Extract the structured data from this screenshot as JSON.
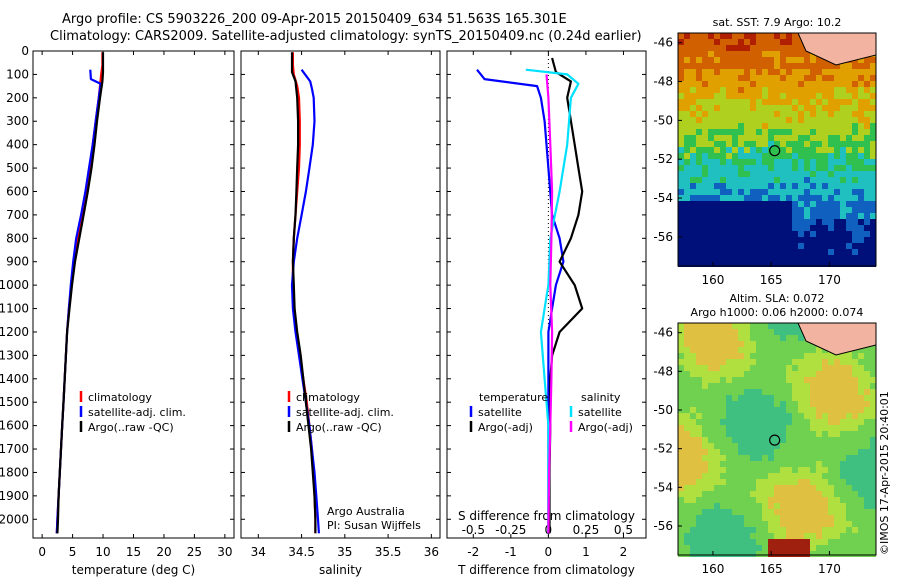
{
  "header": {
    "line1": "Argo profile: CS 5903226_200 09-Apr-2015 20150409_634 51.563S 165.301E",
    "line2": "Climatology: CARS2009. Satellite-adjusted climatology: synTS_20150409.nc (0.24d earlier)"
  },
  "credit": "©IMOS 17-Apr-2015 20:40:01",
  "colors": {
    "red": "#ff0000",
    "blue": "#0000ff",
    "black": "#000000",
    "cyan": "#00e0ff",
    "magenta": "#ff00ff"
  },
  "chart_data": [
    {
      "type": "line",
      "panel": "temperature",
      "xlabel": "temperature (deg C)",
      "ylabel": "",
      "xlim": [
        -1.5,
        31.5
      ],
      "ylim": [
        2080,
        0
      ],
      "xticks": [
        0,
        5,
        10,
        15,
        20,
        25,
        30
      ],
      "yticks": [
        0,
        100,
        200,
        300,
        400,
        500,
        600,
        700,
        800,
        900,
        1000,
        1100,
        1200,
        1300,
        1400,
        1500,
        1600,
        1700,
        1800,
        1900,
        2000
      ],
      "legend": "center-bottom",
      "series": [
        {
          "name": "climatology",
          "color": "red",
          "points": [
            [
              9.9,
              5
            ],
            [
              9.9,
              60
            ],
            [
              9.7,
              100
            ],
            [
              9.3,
              200
            ],
            [
              8.8,
              300
            ],
            [
              8.3,
              400
            ],
            [
              7.8,
              500
            ],
            [
              7.2,
              600
            ],
            [
              6.6,
              700
            ],
            [
              5.9,
              800
            ],
            [
              5.3,
              900
            ],
            [
              4.8,
              1000
            ],
            [
              4.4,
              1100
            ],
            [
              4.1,
              1200
            ],
            [
              3.9,
              1300
            ],
            [
              3.7,
              1400
            ],
            [
              3.5,
              1500
            ],
            [
              3.3,
              1600
            ],
            [
              3.1,
              1700
            ],
            [
              2.9,
              1800
            ],
            [
              2.7,
              1900
            ],
            [
              2.5,
              2000
            ],
            [
              2.4,
              2060
            ]
          ]
        },
        {
          "name": "satellite-adj. clim.",
          "color": "blue",
          "points": [
            [
              7.9,
              80
            ],
            [
              8.0,
              120
            ],
            [
              9.6,
              140
            ],
            [
              9.3,
              200
            ],
            [
              8.8,
              300
            ],
            [
              8.3,
              400
            ],
            [
              7.7,
              500
            ],
            [
              7.1,
              600
            ],
            [
              6.4,
              700
            ],
            [
              5.6,
              800
            ],
            [
              5.1,
              900
            ],
            [
              4.7,
              1000
            ],
            [
              4.4,
              1100
            ],
            [
              4.1,
              1200
            ],
            [
              3.9,
              1300
            ],
            [
              3.7,
              1400
            ],
            [
              3.5,
              1500
            ],
            [
              3.3,
              1600
            ],
            [
              3.1,
              1700
            ],
            [
              2.9,
              1800
            ],
            [
              2.7,
              1900
            ],
            [
              2.5,
              2000
            ],
            [
              2.4,
              2060
            ]
          ]
        },
        {
          "name": "Argo(..raw -QC)",
          "color": "black",
          "points": [
            [
              10.0,
              5
            ],
            [
              10.0,
              90
            ],
            [
              9.9,
              130
            ],
            [
              9.5,
              200
            ],
            [
              9.0,
              300
            ],
            [
              8.6,
              400
            ],
            [
              8.1,
              500
            ],
            [
              7.5,
              600
            ],
            [
              6.8,
              700
            ],
            [
              6.1,
              800
            ],
            [
              5.4,
              900
            ],
            [
              4.9,
              1000
            ],
            [
              4.5,
              1100
            ],
            [
              4.1,
              1200
            ],
            [
              3.9,
              1300
            ],
            [
              3.7,
              1400
            ],
            [
              3.5,
              1500
            ],
            [
              3.3,
              1600
            ],
            [
              3.1,
              1700
            ],
            [
              2.9,
              1800
            ],
            [
              2.7,
              1900
            ],
            [
              2.6,
              2000
            ],
            [
              2.5,
              2060
            ]
          ]
        }
      ]
    },
    {
      "type": "line",
      "panel": "salinity",
      "xlabel": "salinity",
      "xlim": [
        33.8,
        36.1
      ],
      "ylim": [
        2080,
        0
      ],
      "xticks": [
        34,
        34.5,
        35,
        35.5,
        36
      ],
      "legend": "center-bottom",
      "annotation": [
        "Argo Australia",
        "PI: Susan Wijffels"
      ],
      "series": [
        {
          "name": "climatology",
          "color": "red",
          "points": [
            [
              34.4,
              5
            ],
            [
              34.4,
              60
            ],
            [
              34.41,
              100
            ],
            [
              34.45,
              150
            ],
            [
              34.47,
              200
            ],
            [
              34.48,
              300
            ],
            [
              34.48,
              400
            ],
            [
              34.47,
              500
            ],
            [
              34.45,
              600
            ],
            [
              34.43,
              700
            ],
            [
              34.41,
              800
            ],
            [
              34.4,
              900
            ],
            [
              34.4,
              1000
            ],
            [
              34.41,
              1100
            ],
            [
              34.44,
              1200
            ],
            [
              34.48,
              1300
            ],
            [
              34.52,
              1400
            ],
            [
              34.56,
              1500
            ],
            [
              34.59,
              1600
            ],
            [
              34.62,
              1700
            ],
            [
              34.64,
              1800
            ],
            [
              34.65,
              1900
            ],
            [
              34.66,
              2000
            ],
            [
              34.66,
              2060
            ]
          ]
        },
        {
          "name": "satellite-adj. clim.",
          "color": "blue",
          "points": [
            [
              34.5,
              80
            ],
            [
              34.6,
              130
            ],
            [
              34.62,
              160
            ],
            [
              34.64,
              200
            ],
            [
              34.65,
              300
            ],
            [
              34.63,
              400
            ],
            [
              34.59,
              500
            ],
            [
              34.55,
              600
            ],
            [
              34.5,
              700
            ],
            [
              34.45,
              800
            ],
            [
              34.41,
              900
            ],
            [
              34.39,
              1000
            ],
            [
              34.4,
              1100
            ],
            [
              34.43,
              1200
            ],
            [
              34.47,
              1300
            ],
            [
              34.51,
              1400
            ],
            [
              34.55,
              1500
            ],
            [
              34.59,
              1600
            ],
            [
              34.62,
              1700
            ],
            [
              34.65,
              1800
            ],
            [
              34.67,
              1900
            ],
            [
              34.69,
              2000
            ],
            [
              34.7,
              2060
            ]
          ]
        },
        {
          "name": "Argo(..raw -QC)",
          "color": "black",
          "points": [
            [
              34.39,
              5
            ],
            [
              34.39,
              90
            ],
            [
              34.43,
              130
            ],
            [
              34.45,
              200
            ],
            [
              34.46,
              300
            ],
            [
              34.46,
              400
            ],
            [
              34.45,
              500
            ],
            [
              34.44,
              600
            ],
            [
              34.43,
              700
            ],
            [
              34.41,
              800
            ],
            [
              34.4,
              900
            ],
            [
              34.41,
              1000
            ],
            [
              34.42,
              1100
            ],
            [
              34.45,
              1200
            ],
            [
              34.49,
              1300
            ],
            [
              34.52,
              1400
            ],
            [
              34.55,
              1500
            ],
            [
              34.58,
              1600
            ],
            [
              34.61,
              1700
            ],
            [
              34.63,
              1800
            ],
            [
              34.65,
              1900
            ],
            [
              34.66,
              2000
            ],
            [
              34.66,
              2060
            ]
          ]
        }
      ]
    },
    {
      "type": "line",
      "panel": "difference",
      "xlabel": "T difference from climatology",
      "xlabel2": "S difference from climatology",
      "xlim": [
        -2.7,
        2.6
      ],
      "ylim": [
        2080,
        0
      ],
      "xticks": [
        -2,
        -1,
        0,
        1,
        2
      ],
      "xticks_labels": [
        "-2",
        "-1",
        "0",
        "1",
        "2"
      ],
      "xticks2": [
        -0.5,
        -0.25,
        0,
        0.25,
        0.5
      ],
      "xticks2_labels": [
        "-0.5",
        "-0.25",
        "0",
        "0.25",
        "0.5"
      ],
      "legend_headers": [
        "temperature",
        "salinity"
      ],
      "series": [
        {
          "name": "satellite",
          "group": "temperature",
          "color": "blue",
          "points": [
            [
              -1.9,
              80
            ],
            [
              -1.7,
              120
            ],
            [
              -0.3,
              150
            ],
            [
              -0.2,
              200
            ],
            [
              -0.1,
              300
            ],
            [
              0.0,
              500
            ],
            [
              0.1,
              700
            ],
            [
              0.3,
              800
            ],
            [
              0.4,
              900
            ],
            [
              0.2,
              1000
            ],
            [
              0.1,
              1100
            ],
            [
              0.0,
              1200
            ],
            [
              0.0,
              1400
            ],
            [
              0.0,
              1600
            ],
            [
              0.0,
              1800
            ],
            [
              0.0,
              2060
            ]
          ]
        },
        {
          "name": "Argo(-adj)",
          "group": "temperature",
          "color": "black",
          "points": [
            [
              0.1,
              30
            ],
            [
              0.2,
              90
            ],
            [
              0.6,
              130
            ],
            [
              0.5,
              200
            ],
            [
              0.7,
              400
            ],
            [
              0.8,
              500
            ],
            [
              0.9,
              600
            ],
            [
              0.8,
              700
            ],
            [
              0.6,
              800
            ],
            [
              0.3,
              900
            ],
            [
              0.7,
              1000
            ],
            [
              0.9,
              1100
            ],
            [
              0.3,
              1200
            ],
            [
              0.1,
              1300
            ],
            [
              0.05,
              1400
            ],
            [
              0.05,
              1600
            ],
            [
              0.03,
              1800
            ],
            [
              0.03,
              2060
            ]
          ]
        },
        {
          "name": "satellite",
          "group": "salinity",
          "color": "cyan",
          "points": [
            [
              -0.6,
              80
            ],
            [
              0.5,
              100
            ],
            [
              0.8,
              140
            ],
            [
              0.6,
              200
            ],
            [
              0.5,
              400
            ],
            [
              0.3,
              600
            ],
            [
              0.05,
              800
            ],
            [
              0.0,
              1000
            ],
            [
              -0.1,
              1100
            ],
            [
              -0.2,
              1200
            ],
            [
              -0.1,
              1400
            ],
            [
              0.0,
              1600
            ],
            [
              0.0,
              2060
            ]
          ]
        },
        {
          "name": "Argo(-adj)",
          "group": "salinity",
          "color": "magenta",
          "points": [
            [
              -0.05,
              100
            ],
            [
              0.0,
              200
            ],
            [
              0.05,
              400
            ],
            [
              0.1,
              600
            ],
            [
              0.08,
              800
            ],
            [
              0.05,
              1000
            ],
            [
              0.1,
              1200
            ],
            [
              0.08,
              1400
            ],
            [
              0.05,
              1600
            ],
            [
              0.02,
              1800
            ],
            [
              0.0,
              2060
            ]
          ]
        }
      ]
    },
    {
      "type": "heatmap",
      "panel": "sst-map",
      "title": "sat. SST: 7.9 Argo: 10.2",
      "xlim": [
        157,
        174
      ],
      "ylim": [
        -57.5,
        -45.5
      ],
      "xticks": [
        160,
        165,
        170
      ],
      "yticks": [
        -46,
        -48,
        -50,
        -52,
        -54,
        -56
      ],
      "float_position": [
        165.3,
        -51.56
      ]
    },
    {
      "type": "heatmap",
      "panel": "sla-map",
      "title": "Altim. SLA: 0.072",
      "subtitle": "Argo h1000: 0.06 h2000: 0.074",
      "xlim": [
        157,
        174
      ],
      "ylim": [
        -57.5,
        -45.5
      ],
      "xticks": [
        160,
        165,
        170
      ],
      "yticks": [
        -46,
        -48,
        -50,
        -52,
        -54,
        -56
      ],
      "float_position": [
        165.3,
        -51.56
      ]
    }
  ]
}
